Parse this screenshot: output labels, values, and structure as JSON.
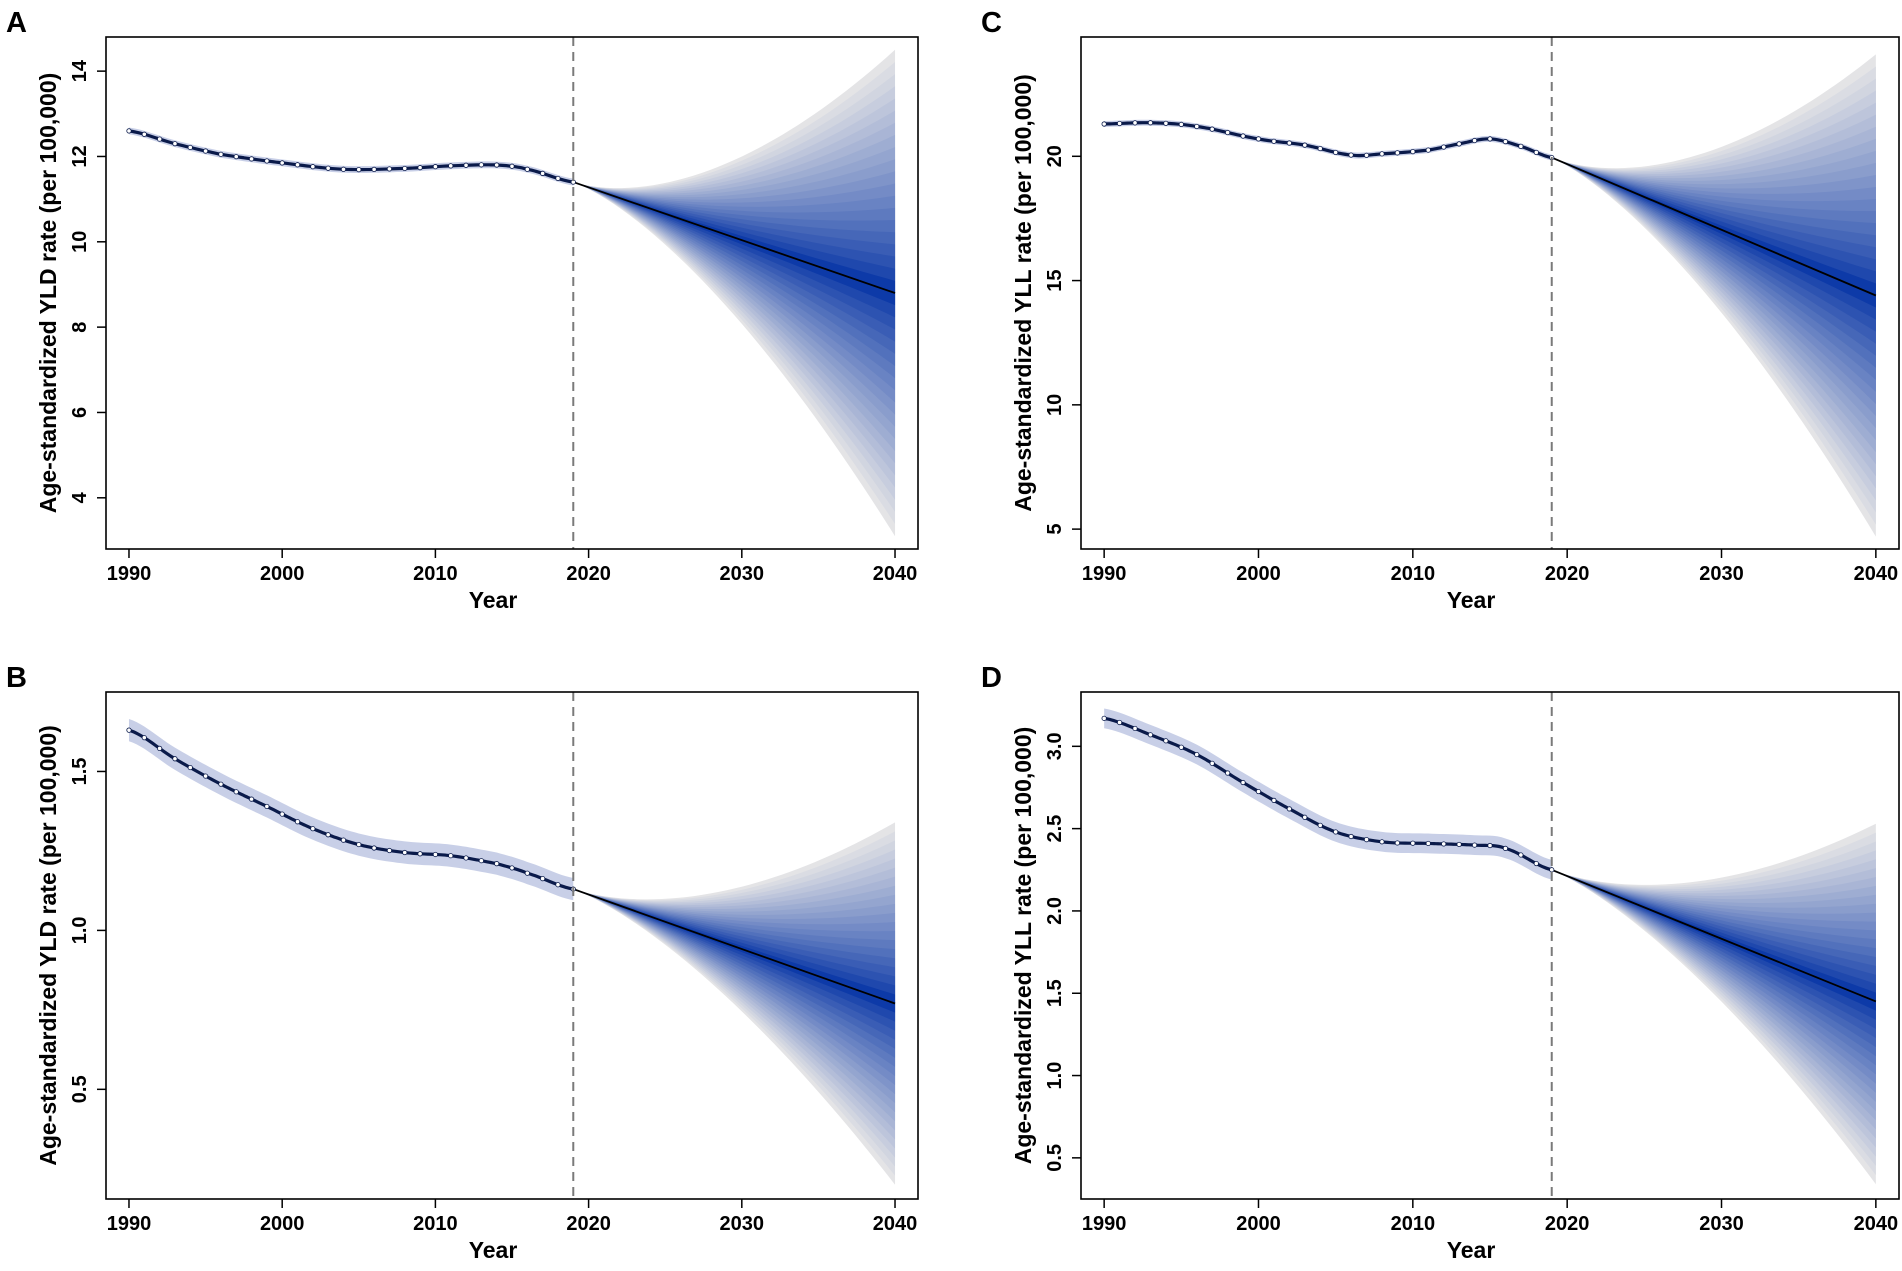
{
  "figure": {
    "description_colors": {
      "history_line": "#0a1a4a",
      "history_band": "#3a53a8",
      "marker_fill": "#ffffff",
      "forecast_line": "#000000",
      "fan_inner": "#0d3aa8",
      "fan_outer": "#e4e4e6",
      "divider": "#7a7a7a"
    }
  },
  "chart_data": [
    {
      "panel": "A",
      "type": "line",
      "subtype": "fan-forecast",
      "xlabel": "Year",
      "ylabel": "Age-standardized YLD rate (per 100,000)",
      "xlim": [
        1988.5,
        2041.5
      ],
      "ylim": [
        2.8,
        14.8
      ],
      "xticks": [
        1990,
        2000,
        2010,
        2020,
        2030,
        2040
      ],
      "yticks": [
        4,
        6,
        8,
        10,
        12,
        14
      ],
      "ytick_labels": [
        "4",
        "6",
        "8",
        "10",
        "12",
        "14"
      ],
      "cutoff_year": 2019,
      "history": {
        "x": [
          1990,
          1993,
          1996,
          2000,
          2004,
          2008,
          2011,
          2014,
          2016,
          2019
        ],
        "y": [
          12.6,
          12.3,
          12.05,
          11.85,
          11.7,
          11.72,
          11.78,
          11.8,
          11.7,
          11.4
        ],
        "band": 0.08
      },
      "forecast": {
        "start": [
          2019,
          11.4
        ],
        "end_year": 2040,
        "end_mean": 8.8,
        "end_upper": 14.5,
        "end_lower": 3.1,
        "layers": 20
      }
    },
    {
      "panel": "B",
      "type": "line",
      "subtype": "fan-forecast",
      "xlabel": "Year",
      "ylabel": "Age-standardized YLD rate (per 100,000)",
      "xlim": [
        1988.5,
        2041.5
      ],
      "ylim": [
        0.155,
        1.75
      ],
      "xticks": [
        1990,
        2000,
        2010,
        2020,
        2030,
        2040
      ],
      "yticks": [
        0.5,
        1.0,
        1.5
      ],
      "ytick_labels": [
        "0.5",
        "1.0",
        "1.5"
      ],
      "cutoff_year": 2019,
      "history": {
        "x": [
          1990,
          1993,
          1996,
          1999,
          2002,
          2005,
          2008,
          2011,
          2014,
          2016,
          2019
        ],
        "y": [
          1.63,
          1.54,
          1.46,
          1.39,
          1.32,
          1.27,
          1.245,
          1.235,
          1.21,
          1.18,
          1.13
        ],
        "band": 0.035
      },
      "forecast": {
        "start": [
          2019,
          1.13
        ],
        "end_year": 2040,
        "end_mean": 0.77,
        "end_upper": 1.34,
        "end_lower": 0.2,
        "layers": 20
      }
    },
    {
      "panel": "C",
      "type": "line",
      "subtype": "fan-forecast",
      "xlabel": "Year",
      "ylabel": "Age-standardized YLL rate (per 100,000)",
      "xlim": [
        1988.5,
        2041.5
      ],
      "ylim": [
        4.2,
        24.8
      ],
      "xticks": [
        1990,
        2000,
        2010,
        2020,
        2030,
        2040
      ],
      "yticks": [
        5,
        10,
        15,
        20
      ],
      "ytick_labels": [
        "5",
        "10",
        "15",
        "20"
      ],
      "cutoff_year": 2019,
      "history": {
        "x": [
          1990,
          1993,
          1996,
          2000,
          2003,
          2006,
          2008,
          2011,
          2013,
          2015,
          2017,
          2019
        ],
        "y": [
          21.3,
          21.35,
          21.2,
          20.7,
          20.45,
          20.05,
          20.1,
          20.25,
          20.5,
          20.7,
          20.4,
          19.95
        ],
        "band": 0.12
      },
      "forecast": {
        "start": [
          2019,
          19.95
        ],
        "end_year": 2040,
        "end_mean": 14.4,
        "end_upper": 24.1,
        "end_lower": 4.7,
        "layers": 20
      }
    },
    {
      "panel": "D",
      "type": "line",
      "subtype": "fan-forecast",
      "xlabel": "Year",
      "ylabel": "Age-standardized YLL rate (per 100,000)",
      "xlim": [
        1988.5,
        2041.5
      ],
      "ylim": [
        0.25,
        3.33
      ],
      "xticks": [
        1990,
        2000,
        2010,
        2020,
        2030,
        2040
      ],
      "yticks": [
        0.5,
        1.0,
        1.5,
        2.0,
        2.5,
        3.0
      ],
      "ytick_labels": [
        "0.5",
        "1.0",
        "1.5",
        "2.0",
        "2.5",
        "3.0"
      ],
      "cutoff_year": 2019,
      "history": {
        "x": [
          1990,
          1993,
          1996,
          1999,
          2002,
          2005,
          2008,
          2011,
          2014,
          2016,
          2019
        ],
        "y": [
          3.17,
          3.07,
          2.95,
          2.78,
          2.62,
          2.48,
          2.42,
          2.41,
          2.4,
          2.38,
          2.25
        ],
        "band": 0.06
      },
      "forecast": {
        "start": [
          2019,
          2.25
        ],
        "end_year": 2040,
        "end_mean": 1.45,
        "end_upper": 2.53,
        "end_lower": 0.34,
        "layers": 20
      }
    }
  ]
}
